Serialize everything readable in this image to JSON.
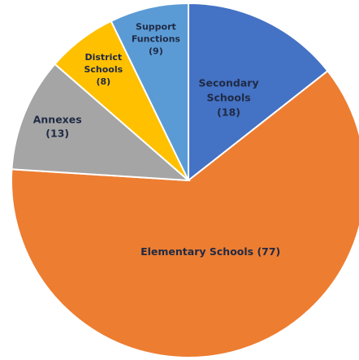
{
  "chart_data": {
    "type": "pie",
    "title": "",
    "legend": "none",
    "start_angle_deg": 0,
    "direction": "clockwise",
    "slices": [
      {
        "name": "Secondary Schools",
        "value": 18,
        "color": "#4472c4",
        "text_color": "#1f2a44",
        "label_lines": [
          "Secondary",
          "Schools",
          "(18)"
        ]
      },
      {
        "name": "Elementary Schools",
        "value": 77,
        "color": "#ed7d31",
        "text_color": "#1f2a44",
        "label_lines": [
          "Elementary Schools (77)"
        ]
      },
      {
        "name": "Annexes",
        "value": 13,
        "color": "#a5a5a5",
        "text_color": "#1f2a44",
        "label_lines": [
          "Annexes",
          "(13)"
        ]
      },
      {
        "name": "District Schools",
        "value": 8,
        "color": "#ffc000",
        "text_color": "#1f2a44",
        "label_lines": [
          "District",
          "Schools",
          "(8)"
        ]
      },
      {
        "name": "Support Functions",
        "value": 9,
        "color": "#5b9bd5",
        "text_color": "#1f2a44",
        "label_lines": [
          "Support",
          "Functions",
          "(9)"
        ]
      }
    ]
  }
}
